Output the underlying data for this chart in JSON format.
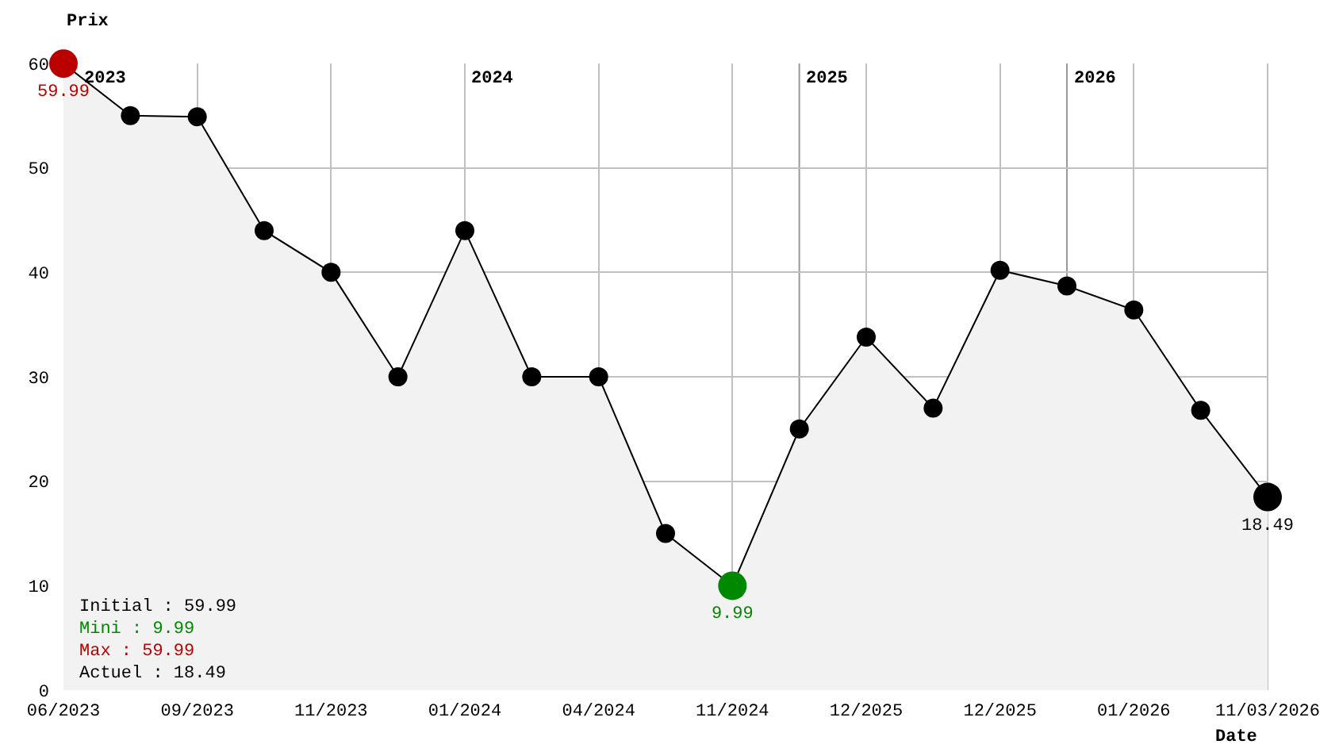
{
  "chart_data": {
    "type": "area",
    "xlabel": "Date",
    "ylabel": "Prix",
    "categories": [
      "06/2023",
      null,
      "09/2023",
      null,
      "11/2023",
      null,
      "01/2024",
      null,
      "04/2024",
      null,
      "11/2024",
      null,
      "12/2025",
      null,
      "12/2025",
      null,
      "01/2026",
      null,
      "11/03/2026"
    ],
    "series": [
      {
        "color": "#f2f2f2",
        "values": [
          59.99,
          55,
          54.9,
          44,
          40,
          30,
          44,
          30,
          30,
          15,
          9.99,
          25,
          33.8,
          27,
          40.2,
          38.7,
          36.4,
          26.8,
          18.49
        ],
        "colors": [
          "#bb0000",
          "#000000",
          "#000000",
          "#000000",
          "#000000",
          "#000000",
          "#000000",
          "#000000",
          "#000000",
          "#000000",
          "#008800",
          "#000000",
          "#000000",
          "#000000",
          "#000000",
          "#000000",
          "#000000",
          "#000000",
          "#000000"
        ],
        "value_labels": [
          "59.99",
          null,
          null,
          null,
          null,
          null,
          null,
          null,
          null,
          null,
          "9.99",
          null,
          null,
          null,
          null,
          null,
          null,
          null,
          "18.49"
        ]
      }
    ],
    "ylim": [
      0,
      60
    ],
    "yticks": [
      0,
      10,
      20,
      30,
      40,
      50,
      60
    ],
    "grid": true,
    "marker": "circle",
    "annotations": [
      "2023",
      "2024",
      "2025",
      "2026",
      "Initial : 59.99",
      "Mini : 9.99",
      "Max : 59.99",
      "Actuel : 18.49"
    ]
  }
}
